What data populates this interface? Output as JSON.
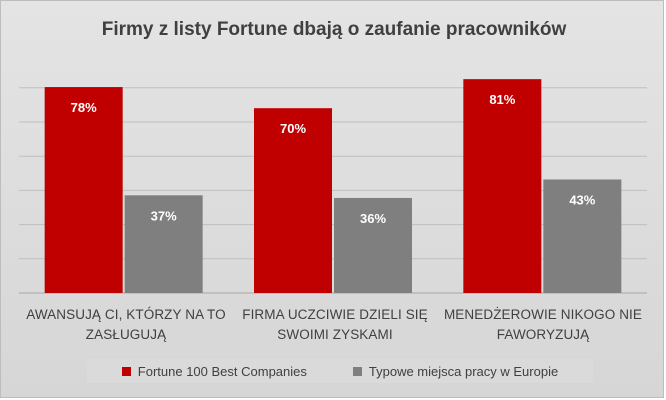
{
  "chart_data": {
    "type": "bar",
    "title": "Firmy z listy Fortune dbają o zaufanie pracowników",
    "categories": [
      [
        "AWANSUJĄ CI, KTÓRZY NA TO",
        "ZASŁUGUJĄ"
      ],
      [
        "FIRMA UCZCIWIE DZIELI SIĘ",
        "SWOIMI ZYSKAMI"
      ],
      [
        "MENEDŻEROWIE  NIKOGO NIE",
        "FAWORYZUJĄ"
      ]
    ],
    "series": [
      {
        "name": "Fortune 100 Best Companies",
        "values": [
          78,
          70,
          81
        ],
        "labels": [
          "78%",
          "70%",
          "81%"
        ],
        "color": "#c00000"
      },
      {
        "name": "Typowe miejsca pracy w Europie",
        "values": [
          37,
          36,
          43
        ],
        "labels": [
          "37%",
          "36%",
          "43%"
        ],
        "color": "#7f7f7f"
      }
    ],
    "ylim": [
      0,
      100
    ],
    "grid": true,
    "legend_position": "bottom"
  }
}
